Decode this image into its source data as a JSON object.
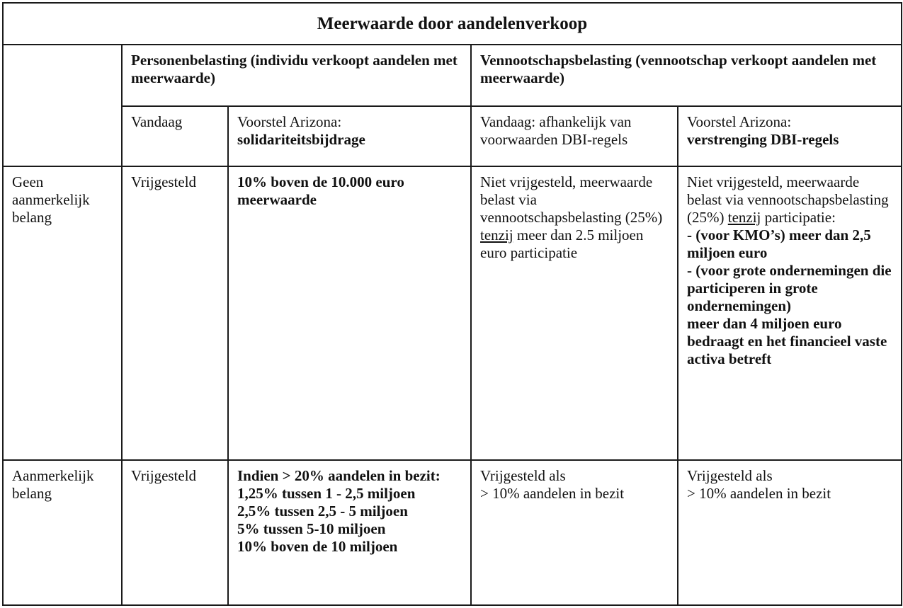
{
  "title": "Meerwaarde door aandelenverkoop",
  "headers": {
    "personen": "Personenbelasting (individu verkoopt aandelen met meerwaarde)",
    "vennootschap": "Vennootschapsbelasting (vennootschap verkoopt aandelen met meerwaarde)",
    "p_today": "Vandaag",
    "p_proposal_prefix": "Voorstel Arizona:",
    "p_proposal_bold": "solidariteitsbijdrage",
    "v_today": "Vandaag: afhankelijk van voorwaarden DBI-regels",
    "v_proposal_prefix": "Voorstel Arizona:",
    "v_proposal_bold": "verstrenging DBI-regels"
  },
  "rows": [
    {
      "label": "Geen aanmerkelijk belang",
      "p_today": "Vrijgesteld",
      "p_proposal": "10% boven de 10.000 euro meerwaarde",
      "v_today_a": "Niet vrijgesteld, meerwaarde belast via vennootschapsbelasting (25%) ",
      "v_today_u": "tenzij",
      "v_today_b": " meer dan 2.5 miljoen euro participatie",
      "v_proposal_a": "Niet vrijgesteld, meerwaarde belast via vennootschapsbelasting (25%) ",
      "v_proposal_u": "tenzij",
      "v_proposal_b": " participatie:",
      "v_proposal_bold": [
        "- (voor KMO’s) meer dan 2,5 miljoen euro",
        "- (voor grote ondernemingen die participeren in grote ondernemingen)",
        "meer dan 4 miljoen euro bedraagt en het financieel vaste activa betreft"
      ]
    },
    {
      "label": "Aanmerkelijk belang",
      "p_today": "Vrijgesteld",
      "p_proposal": [
        "Indien > 20% aandelen in bezit:",
        "1,25% tussen 1 - 2,5 miljoen",
        "2,5% tussen 2,5 - 5 miljoen",
        "5% tussen 5-10 miljoen",
        "10% boven de 10 miljoen"
      ],
      "v_today": [
        "Vrijgesteld als",
        "> 10% aandelen in bezit"
      ],
      "v_proposal": [
        "Vrijgesteld als",
        "> 10% aandelen in bezit"
      ]
    }
  ]
}
